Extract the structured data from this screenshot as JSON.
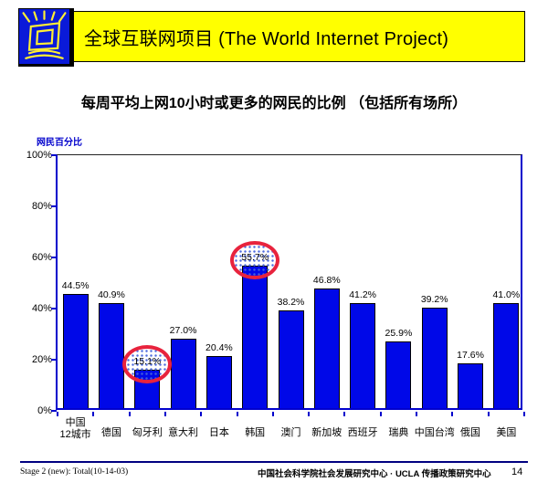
{
  "header": {
    "title": "全球互联网项目 (The World Internet Project)",
    "banner_color": "#ffff00",
    "logo_color": "#0a1ad9",
    "logo_icon": "crt-monitor-rays-icon"
  },
  "subtitle": "每周平均上网10小时或更多的网民的比例 （包括所有场所）",
  "chart_data": {
    "type": "bar",
    "title": "",
    "ylabel": "网民百分比",
    "xlabel": "",
    "ylim": [
      0,
      100
    ],
    "yticks": [
      "100%",
      "80%",
      "60%",
      "40%",
      "20%",
      "0%"
    ],
    "grid": false,
    "legend": null,
    "categories": [
      "中国\n12城市",
      "德国",
      "匈牙利",
      "意大利",
      "日本",
      "韩国",
      "澳门",
      "新加坡",
      "西班牙",
      "瑞典",
      "中国台湾",
      "俄国",
      "美国"
    ],
    "values": [
      44.5,
      40.9,
      15.1,
      27.0,
      20.4,
      55.7,
      38.2,
      46.8,
      41.2,
      25.9,
      39.2,
      17.6,
      41.0
    ],
    "value_labels": [
      "44.5%",
      "40.9%",
      "15.1%",
      "27.0%",
      "20.4%",
      "55.7%",
      "38.2%",
      "46.8%",
      "41.2%",
      "25.9%",
      "39.2%",
      "17.6%",
      "41.0%"
    ],
    "highlighted_indices": [
      2,
      5
    ],
    "bar_color": "#0008e8",
    "axis_color": "#0000cc",
    "highlight_ring_color": "#e8233d",
    "highlight_dot_color": "#4664dc"
  },
  "footer": {
    "left": "Stage 2 (new): Total(10-14-03)",
    "center": "中国社会科学院社会发展研究中心 · UCLA 传播政策研究中心",
    "page": "14"
  }
}
